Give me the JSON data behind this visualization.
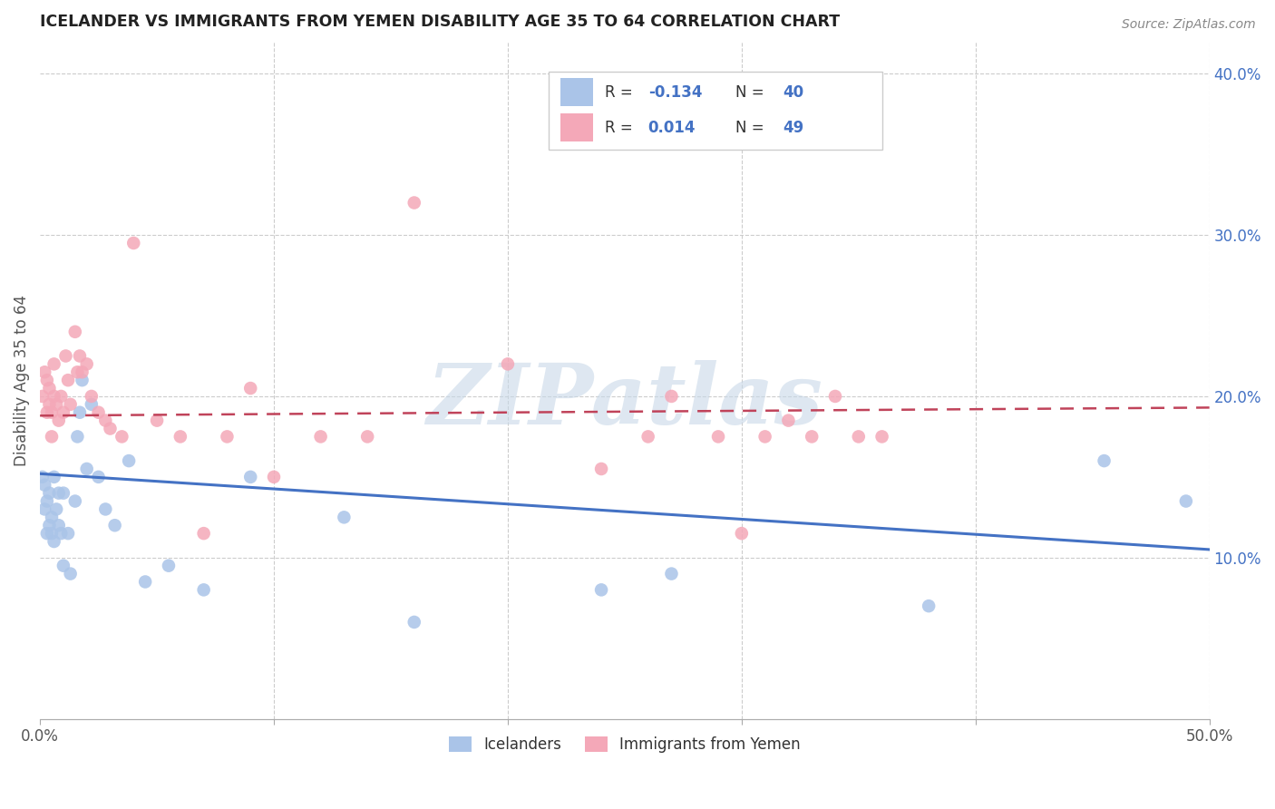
{
  "title": "ICELANDER VS IMMIGRANTS FROM YEMEN DISABILITY AGE 35 TO 64 CORRELATION CHART",
  "source": "Source: ZipAtlas.com",
  "ylabel": "Disability Age 35 to 64",
  "xlim": [
    0.0,
    0.5
  ],
  "ylim": [
    0.0,
    0.42
  ],
  "grid_color": "#cccccc",
  "blue_color": "#aac4e8",
  "pink_color": "#f4a8b8",
  "blue_line_color": "#4472c4",
  "pink_line_color": "#c0435a",
  "watermark_text": "ZIPatlas",
  "watermark_color": "#c8d8e8",
  "legend_R_blue": "-0.134",
  "legend_N_blue": "40",
  "legend_R_pink": "0.014",
  "legend_N_pink": "49",
  "legend_label_blue": "Icelanders",
  "legend_label_pink": "Immigrants from Yemen",
  "blue_scatter_x": [
    0.001,
    0.002,
    0.002,
    0.003,
    0.003,
    0.004,
    0.004,
    0.005,
    0.005,
    0.006,
    0.006,
    0.007,
    0.008,
    0.008,
    0.009,
    0.01,
    0.01,
    0.012,
    0.013,
    0.015,
    0.016,
    0.017,
    0.018,
    0.02,
    0.022,
    0.025,
    0.028,
    0.032,
    0.038,
    0.045,
    0.055,
    0.07,
    0.09,
    0.13,
    0.16,
    0.24,
    0.27,
    0.38,
    0.455,
    0.49
  ],
  "blue_scatter_y": [
    0.15,
    0.13,
    0.145,
    0.115,
    0.135,
    0.12,
    0.14,
    0.115,
    0.125,
    0.11,
    0.15,
    0.13,
    0.12,
    0.14,
    0.115,
    0.14,
    0.095,
    0.115,
    0.09,
    0.135,
    0.175,
    0.19,
    0.21,
    0.155,
    0.195,
    0.15,
    0.13,
    0.12,
    0.16,
    0.085,
    0.095,
    0.08,
    0.15,
    0.125,
    0.06,
    0.08,
    0.09,
    0.07,
    0.16,
    0.135
  ],
  "pink_scatter_x": [
    0.001,
    0.002,
    0.003,
    0.003,
    0.004,
    0.004,
    0.005,
    0.005,
    0.006,
    0.006,
    0.007,
    0.008,
    0.009,
    0.01,
    0.011,
    0.012,
    0.013,
    0.015,
    0.016,
    0.017,
    0.018,
    0.02,
    0.022,
    0.025,
    0.028,
    0.03,
    0.035,
    0.04,
    0.05,
    0.06,
    0.07,
    0.08,
    0.09,
    0.1,
    0.12,
    0.14,
    0.16,
    0.2,
    0.24,
    0.26,
    0.27,
    0.29,
    0.3,
    0.31,
    0.32,
    0.33,
    0.34,
    0.35,
    0.36
  ],
  "pink_scatter_y": [
    0.2,
    0.215,
    0.19,
    0.21,
    0.195,
    0.205,
    0.175,
    0.19,
    0.2,
    0.22,
    0.195,
    0.185,
    0.2,
    0.19,
    0.225,
    0.21,
    0.195,
    0.24,
    0.215,
    0.225,
    0.215,
    0.22,
    0.2,
    0.19,
    0.185,
    0.18,
    0.175,
    0.295,
    0.185,
    0.175,
    0.115,
    0.175,
    0.205,
    0.15,
    0.175,
    0.175,
    0.32,
    0.22,
    0.155,
    0.175,
    0.2,
    0.175,
    0.115,
    0.175,
    0.185,
    0.175,
    0.2,
    0.175,
    0.175
  ],
  "blue_line_x0": 0.0,
  "blue_line_x1": 0.5,
  "blue_line_y0": 0.152,
  "blue_line_y1": 0.105,
  "pink_line_x0": 0.0,
  "pink_line_x1": 0.5,
  "pink_line_y0": 0.188,
  "pink_line_y1": 0.193
}
